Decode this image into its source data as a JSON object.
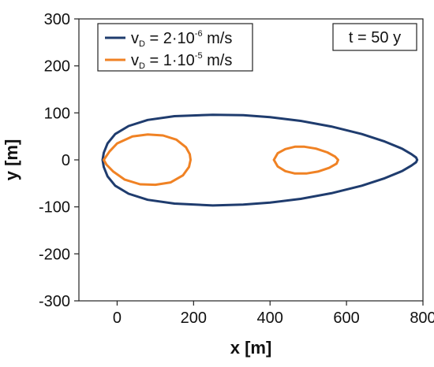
{
  "chart_data": {
    "type": "line",
    "xlabel": "x [m]",
    "ylabel": "y [m]",
    "xlim": [
      -100,
      800
    ],
    "ylim": [
      -300,
      300
    ],
    "x_ticks": [
      0,
      200,
      400,
      600,
      800
    ],
    "y_ticks": [
      300,
      200,
      100,
      0,
      -100,
      -200,
      -300
    ],
    "grid": false,
    "legend_position": "top-left",
    "annotation": "t = 50 y",
    "series": [
      {
        "name": "vD = 2·10-6 m/s",
        "legend": {
          "base": "v",
          "sub": "D",
          "mid": " = 2·10",
          "sup": "-6",
          "tail": " m/s"
        },
        "color": "#1f3c6e",
        "x": [
          -38,
          -35,
          -25,
          -5,
          30,
          80,
          150,
          250,
          330,
          400,
          480,
          560,
          640,
          700,
          745,
          770,
          782,
          785,
          782,
          770,
          745,
          700,
          640,
          560,
          480,
          400,
          330,
          250,
          150,
          80,
          30,
          -5,
          -25,
          -35,
          -38
        ],
        "y": [
          0,
          15,
          35,
          55,
          72,
          85,
          93,
          96,
          95,
          91,
          83,
          71,
          55,
          39,
          24,
          12,
          5,
          0,
          -5,
          -12,
          -24,
          -39,
          -55,
          -71,
          -83,
          -91,
          -95,
          -97,
          -93,
          -85,
          -72,
          -55,
          -35,
          -15,
          0
        ]
      },
      {
        "name": "vD = 1·10-5 m/s",
        "legend": {
          "base": "v",
          "sub": "D",
          "mid": " = 1·10",
          "sup": "-5",
          "tail": " m/s"
        },
        "color": "#f08224",
        "x": [
          -35,
          -20,
          0,
          40,
          80,
          120,
          155,
          180,
          190,
          192,
          188,
          172,
          140,
          100,
          60,
          20,
          -10,
          -28,
          -35
        ],
        "y": [
          0,
          18,
          35,
          50,
          54,
          52,
          43,
          27,
          12,
          0,
          -15,
          -33,
          -48,
          -53,
          -52,
          -42,
          -25,
          -10,
          0
        ]
      },
      {
        "name": "",
        "legend": null,
        "color": "#f08224",
        "x": [
          410,
          420,
          440,
          465,
          490,
          520,
          550,
          570,
          578,
          574,
          555,
          525,
          495,
          465,
          440,
          420,
          410
        ],
        "y": [
          0,
          14,
          23,
          28,
          28,
          24,
          16,
          7,
          0,
          -8,
          -17,
          -25,
          -29,
          -29,
          -24,
          -14,
          0
        ]
      }
    ]
  }
}
